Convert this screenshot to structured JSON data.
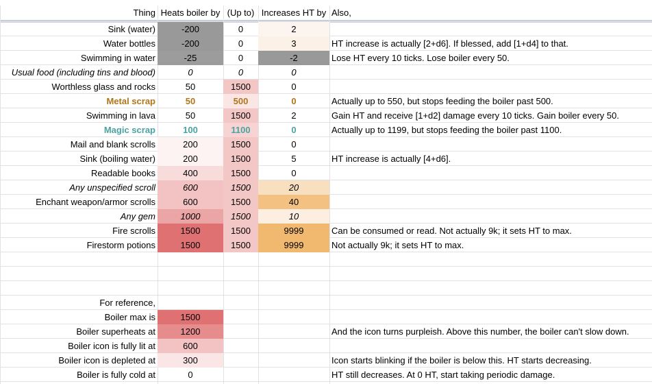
{
  "header": [
    "Thing",
    "Heats boiler by",
    "(Up to)",
    "Increases HT by",
    "Also,"
  ],
  "rows": [
    {
      "thing": "Sink (water)",
      "heat": "-200",
      "upto": "0",
      "ht": "2",
      "note": "",
      "style": "normal",
      "heat_bg": "#999999",
      "upto_bg": "",
      "ht_bg": "#fcf4ee"
    },
    {
      "thing": "Water bottles",
      "heat": "-200",
      "upto": "0",
      "ht": "3",
      "note": "HT increase is actually [2+d6]. If blessed, add [1+d4] to that.",
      "style": "normal",
      "heat_bg": "#999999",
      "upto_bg": "",
      "ht_bg": "#fcf1e6"
    },
    {
      "thing": "Swimming in water",
      "heat": "-25",
      "upto": "0",
      "ht": "-2",
      "note": "Lose HT every 10 ticks. Lose boiler every 50.",
      "style": "normal",
      "heat_bg": "#9c9c9c",
      "upto_bg": "",
      "ht_bg": "#999999"
    },
    {
      "thing": "Usual food (including tins and blood)",
      "heat": "0",
      "upto": "0",
      "ht": "0",
      "note": "",
      "style": "italic",
      "heat_bg": "",
      "upto_bg": "",
      "ht_bg": ""
    },
    {
      "thing": "Worthless glass and rocks",
      "heat": "50",
      "upto": "1500",
      "ht": "0",
      "note": "",
      "style": "normal",
      "heat_bg": "",
      "upto_bg": "#f4c7c7",
      "ht_bg": ""
    },
    {
      "thing": "Metal scrap",
      "heat": "50",
      "upto": "500",
      "ht": "0",
      "note": "Actually up to 550, but stops feeding the boiler past 500.",
      "style": "metal",
      "heat_bg": "",
      "upto_bg": "#fbe6e6",
      "ht_bg": ""
    },
    {
      "thing": "Swimming in lava",
      "heat": "50",
      "upto": "1500",
      "ht": "2",
      "note": "Gain HT and receive [1+d2] damage every 10 ticks. Gain boiler every 50.",
      "style": "normal",
      "heat_bg": "",
      "upto_bg": "#f4c7c7",
      "ht_bg": ""
    },
    {
      "thing": "Magic scrap",
      "heat": "100",
      "upto": "1100",
      "ht": "0",
      "note": "Actually up to 1199, but stops feeding the boiler past 1100.",
      "style": "magic",
      "heat_bg": "",
      "upto_bg": "#f7d3d3",
      "ht_bg": ""
    },
    {
      "thing": "Mail and blank scrolls",
      "heat": "200",
      "upto": "1500",
      "ht": "0",
      "note": "",
      "style": "normal",
      "heat_bg": "#fdf3f3",
      "upto_bg": "#f4c7c7",
      "ht_bg": ""
    },
    {
      "thing": "Sink (boiling water)",
      "heat": "200",
      "upto": "1500",
      "ht": "5",
      "note": "HT increase is actually [4+d6].",
      "style": "normal",
      "heat_bg": "#fdf3f3",
      "upto_bg": "#f4c7c7",
      "ht_bg": ""
    },
    {
      "thing": "Readable books",
      "heat": "400",
      "upto": "1500",
      "ht": "0",
      "note": "",
      "style": "normal",
      "heat_bg": "#f8dcdc",
      "upto_bg": "#f4c7c7",
      "ht_bg": ""
    },
    {
      "thing": "Any unspecified scroll",
      "heat": "600",
      "upto": "1500",
      "ht": "20",
      "note": "",
      "style": "italic",
      "heat_bg": "#f3c3c3",
      "upto_bg": "#f4c7c7",
      "ht_bg": "#f8dfc0"
    },
    {
      "thing": "Enchant weapon/armor scrolls",
      "heat": "600",
      "upto": "1500",
      "ht": "40",
      "note": "",
      "style": "normal",
      "heat_bg": "#f3c3c3",
      "upto_bg": "#f4c7c7",
      "ht_bg": "#f3c282"
    },
    {
      "thing": "Any gem",
      "heat": "1000",
      "upto": "1500",
      "ht": "10",
      "note": "",
      "style": "italic",
      "heat_bg": "#eca5a5",
      "upto_bg": "#f4c7c7",
      "ht_bg": "#fcefe1"
    },
    {
      "thing": "Fire scrolls",
      "heat": "1500",
      "upto": "1500",
      "ht": "9999",
      "note": "Can be consumed or read. Not actually 9k; it sets HT to max.",
      "style": "normal",
      "heat_bg": "#e07173",
      "upto_bg": "#f4c7c7",
      "ht_bg": "#f1b96f"
    },
    {
      "thing": "Firestorm potions",
      "heat": "1500",
      "upto": "1500",
      "ht": "9999",
      "note": "Not actually 9k; it sets HT to max.",
      "style": "normal",
      "heat_bg": "#e07173",
      "upto_bg": "#f4c7c7",
      "ht_bg": "#f1b96f"
    }
  ],
  "reference": {
    "title": "For reference,",
    "items": [
      {
        "label": "Boiler max is",
        "value": "1500",
        "note": "",
        "bg": "#e07173"
      },
      {
        "label": "Boiler superheats at",
        "value": "1200",
        "note": "And the icon turns purpleish. Above this number, the boiler can't slow down.",
        "bg": "#e68c8d"
      },
      {
        "label": "Boiler icon is fully lit at",
        "value": "600",
        "note": "",
        "bg": "#f3c3c3"
      },
      {
        "label": "Boiler icon is depleted at",
        "value": "300",
        "note": "Icon starts blinking if the boiler is below this. HT starts decreasing.",
        "bg": "#fae6e6"
      },
      {
        "label": "Boiler is fully cold at",
        "value": "0",
        "note": "HT still decreases. At 0 HT, start taking periodic damage.",
        "bg": ""
      }
    ]
  }
}
